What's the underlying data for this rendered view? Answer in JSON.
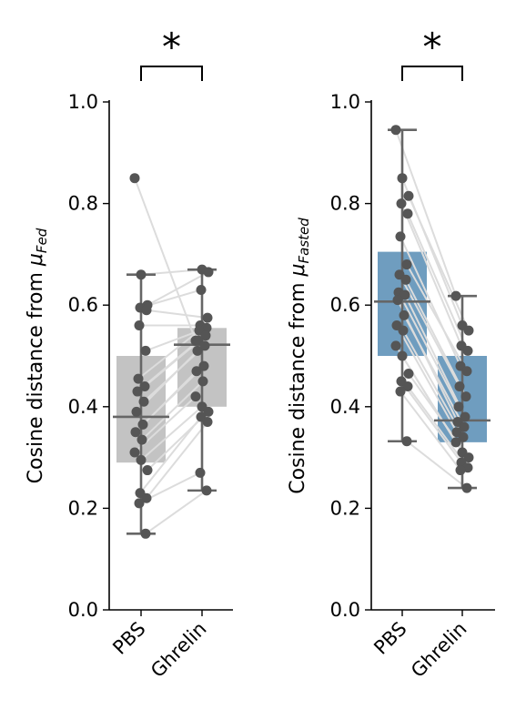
{
  "chart_data": [
    {
      "type": "box",
      "ylabel_prefix": "Cosine distance from ",
      "ylabel_symbol": "μ",
      "ylabel_subscript": "Fed",
      "categories": [
        "PBS",
        "Ghrelin"
      ],
      "ylim": [
        0.0,
        1.0
      ],
      "yticks": [
        "0.0",
        "0.2",
        "0.4",
        "0.6",
        "0.8",
        "1.0"
      ],
      "significance": "*",
      "box_color": "#c3c3c3",
      "boxes": [
        {
          "name": "PBS",
          "whisker_low": 0.15,
          "q1": 0.29,
          "median": 0.38,
          "q3": 0.5,
          "whisker_high": 0.66
        },
        {
          "name": "Ghrelin",
          "whisker_low": 0.235,
          "q1": 0.4,
          "median": 0.522,
          "q3": 0.555,
          "whisker_high": 0.67
        }
      ],
      "pairs": [
        [
          0.85,
          0.53
        ],
        [
          0.66,
          0.67
        ],
        [
          0.6,
          0.665
        ],
        [
          0.595,
          0.63
        ],
        [
          0.59,
          0.575
        ],
        [
          0.56,
          0.56
        ],
        [
          0.51,
          0.555
        ],
        [
          0.455,
          0.55
        ],
        [
          0.44,
          0.54
        ],
        [
          0.43,
          0.53
        ],
        [
          0.41,
          0.52
        ],
        [
          0.39,
          0.51
        ],
        [
          0.365,
          0.48
        ],
        [
          0.35,
          0.47
        ],
        [
          0.335,
          0.45
        ],
        [
          0.31,
          0.42
        ],
        [
          0.295,
          0.4
        ],
        [
          0.275,
          0.39
        ],
        [
          0.23,
          0.38
        ],
        [
          0.22,
          0.37
        ],
        [
          0.21,
          0.27
        ],
        [
          0.15,
          0.235
        ]
      ]
    },
    {
      "type": "box",
      "ylabel_prefix": "Cosine distance from ",
      "ylabel_symbol": "μ",
      "ylabel_subscript": "Fasted",
      "categories": [
        "PBS",
        "Ghrelin"
      ],
      "ylim": [
        0.0,
        1.0
      ],
      "yticks": [
        "0.0",
        "0.2",
        "0.4",
        "0.6",
        "0.8",
        "1.0"
      ],
      "significance": "*",
      "box_color": "#6f9dbf",
      "boxes": [
        {
          "name": "PBS",
          "whisker_low": 0.332,
          "q1": 0.5,
          "median": 0.607,
          "q3": 0.705,
          "whisker_high": 0.945
        },
        {
          "name": "Ghrelin",
          "whisker_low": 0.24,
          "q1": 0.33,
          "median": 0.373,
          "q3": 0.5,
          "whisker_high": 0.618
        }
      ],
      "pairs": [
        [
          0.945,
          0.618
        ],
        [
          0.85,
          0.56
        ],
        [
          0.815,
          0.55
        ],
        [
          0.8,
          0.52
        ],
        [
          0.78,
          0.51
        ],
        [
          0.735,
          0.48
        ],
        [
          0.68,
          0.47
        ],
        [
          0.66,
          0.44
        ],
        [
          0.65,
          0.42
        ],
        [
          0.625,
          0.4
        ],
        [
          0.62,
          0.38
        ],
        [
          0.61,
          0.37
        ],
        [
          0.58,
          0.36
        ],
        [
          0.56,
          0.35
        ],
        [
          0.55,
          0.34
        ],
        [
          0.52,
          0.33
        ],
        [
          0.5,
          0.31
        ],
        [
          0.465,
          0.3
        ],
        [
          0.45,
          0.29
        ],
        [
          0.44,
          0.28
        ],
        [
          0.43,
          0.275
        ],
        [
          0.332,
          0.24
        ]
      ]
    }
  ]
}
